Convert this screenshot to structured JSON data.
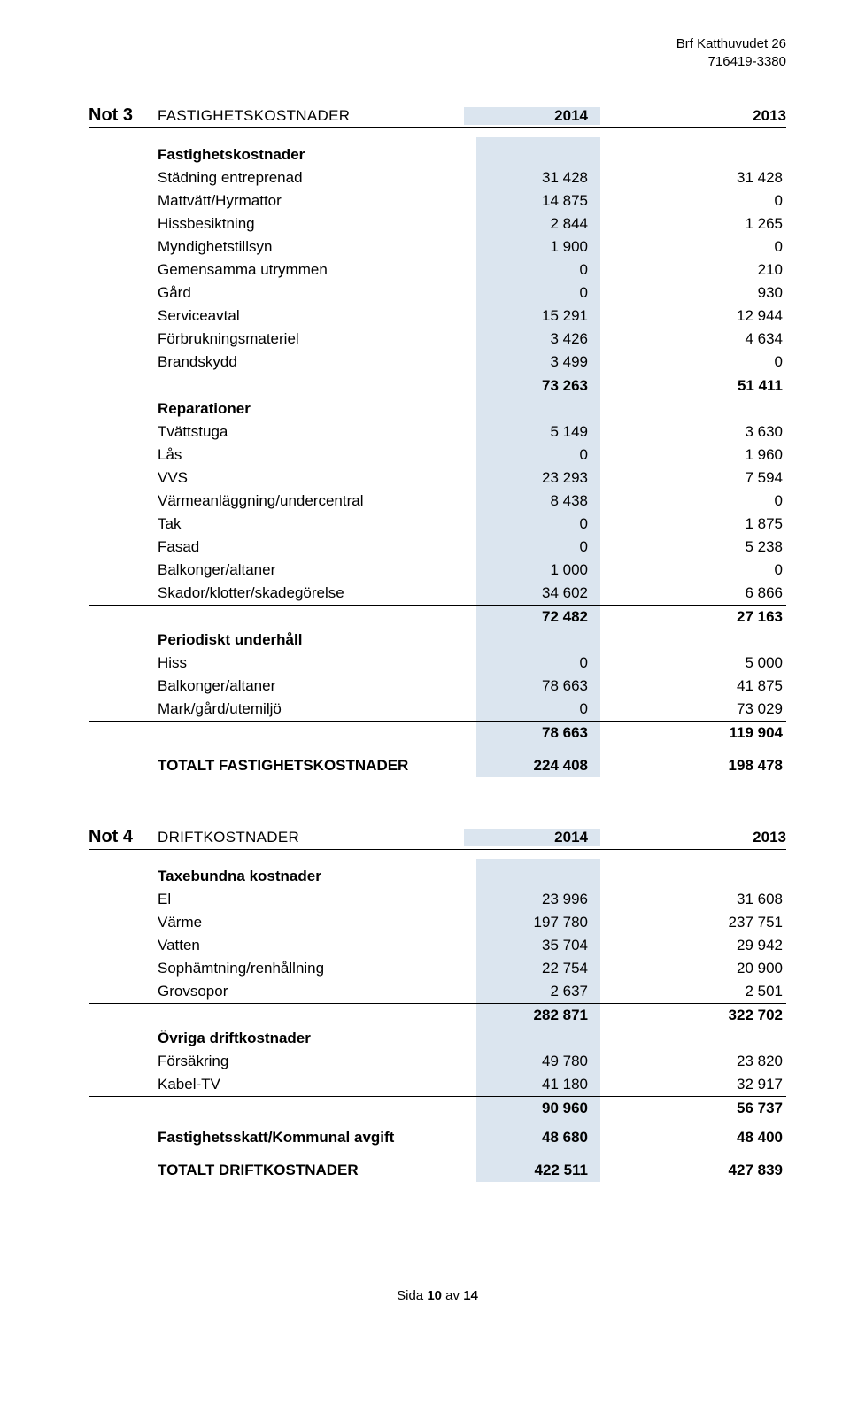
{
  "colors": {
    "highlight_bg": "#dbe5ef",
    "rule": "#000000",
    "page_bg": "#ffffff",
    "text": "#000000"
  },
  "header": {
    "org_name": "Brf Katthuvudet 26",
    "org_id": "716419-3380"
  },
  "not3": {
    "note_label": "Not 3",
    "title": "FASTIGHETSKOSTNADER",
    "year1": "2014",
    "year2": "2013",
    "sec1": {
      "title": "Fastighetskostnader"
    },
    "r1": {
      "l": "Städning entreprenad",
      "a": "31 428",
      "b": "31 428"
    },
    "r2": {
      "l": "Mattvätt/Hyrmattor",
      "a": "14 875",
      "b": "0"
    },
    "r3": {
      "l": "Hissbesiktning",
      "a": "2 844",
      "b": "1 265"
    },
    "r4": {
      "l": "Myndighetstillsyn",
      "a": "1 900",
      "b": "0"
    },
    "r5": {
      "l": "Gemensamma utrymmen",
      "a": "0",
      "b": "210"
    },
    "r6": {
      "l": "Gård",
      "a": "0",
      "b": "930"
    },
    "r7": {
      "l": "Serviceavtal",
      "a": "15 291",
      "b": "12 944"
    },
    "r8": {
      "l": "Förbrukningsmateriel",
      "a": "3 426",
      "b": "4 634"
    },
    "r9": {
      "l": "Brandskydd",
      "a": "3 499",
      "b": "0"
    },
    "st1": {
      "a": "73 263",
      "b": "51 411"
    },
    "sec2": {
      "title": "Reparationer"
    },
    "r10": {
      "l": "Tvättstuga",
      "a": "5 149",
      "b": "3 630"
    },
    "r11": {
      "l": "Lås",
      "a": "0",
      "b": "1 960"
    },
    "r12": {
      "l": "VVS",
      "a": "23 293",
      "b": "7 594"
    },
    "r13": {
      "l": "Värmeanläggning/undercentral",
      "a": "8 438",
      "b": "0"
    },
    "r14": {
      "l": "Tak",
      "a": "0",
      "b": "1 875"
    },
    "r15": {
      "l": "Fasad",
      "a": "0",
      "b": "5 238"
    },
    "r16": {
      "l": "Balkonger/altaner",
      "a": "1 000",
      "b": "0"
    },
    "r17": {
      "l": "Skador/klotter/skadegörelse",
      "a": "34 602",
      "b": "6 866"
    },
    "st2": {
      "a": "72 482",
      "b": "27 163"
    },
    "sec3": {
      "title": "Periodiskt underhåll"
    },
    "r18": {
      "l": "Hiss",
      "a": "0",
      "b": "5 000"
    },
    "r19": {
      "l": "Balkonger/altaner",
      "a": "78 663",
      "b": "41 875"
    },
    "r20": {
      "l": "Mark/gård/utemiljö",
      "a": "0",
      "b": "73 029"
    },
    "st3": {
      "a": "78 663",
      "b": "119 904"
    },
    "total": {
      "l": "TOTALT FASTIGHETSKOSTNADER",
      "a": "224 408",
      "b": "198 478"
    }
  },
  "not4": {
    "note_label": "Not 4",
    "title": "DRIFTKOSTNADER",
    "year1": "2014",
    "year2": "2013",
    "sec1": {
      "title": "Taxebundna kostnader"
    },
    "r1": {
      "l": "El",
      "a": "23 996",
      "b": "31 608"
    },
    "r2": {
      "l": "Värme",
      "a": "197 780",
      "b": "237 751"
    },
    "r3": {
      "l": "Vatten",
      "a": "35 704",
      "b": "29 942"
    },
    "r4": {
      "l": "Sophämtning/renhållning",
      "a": "22 754",
      "b": "20 900"
    },
    "r5": {
      "l": "Grovsopor",
      "a": "2 637",
      "b": "2 501"
    },
    "st1": {
      "a": "282 871",
      "b": "322 702"
    },
    "sec2": {
      "title": "Övriga driftkostnader"
    },
    "r6": {
      "l": "Försäkring",
      "a": "49 780",
      "b": "23 820"
    },
    "r7": {
      "l": "Kabel-TV",
      "a": "41 180",
      "b": "32 917"
    },
    "st2": {
      "a": "90 960",
      "b": "56 737"
    },
    "r8": {
      "l": "Fastighetsskatt/Kommunal avgift",
      "a": "48 680",
      "b": "48 400"
    },
    "total": {
      "l": "TOTALT DRIFTKOSTNADER",
      "a": "422 511",
      "b": "427 839"
    }
  },
  "footer": {
    "text_prefix": "Sida ",
    "page_current": "10",
    "text_mid": " av ",
    "page_total": "14"
  }
}
